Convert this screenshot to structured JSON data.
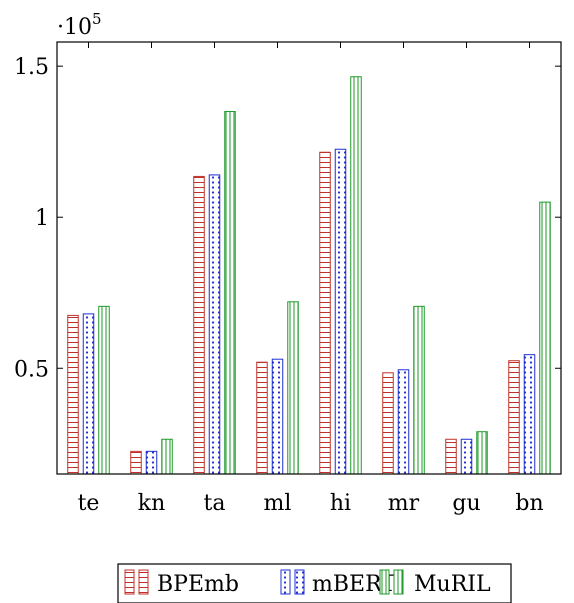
{
  "chart_data": {
    "type": "bar",
    "categories": [
      "te",
      "kn",
      "ta",
      "ml",
      "hi",
      "mr",
      "gu",
      "bn"
    ],
    "series": [
      {
        "name": "BPEmb",
        "values": [
          67500,
          22500,
          113500,
          52000,
          121500,
          48500,
          26500,
          52500
        ]
      },
      {
        "name": "mBERT",
        "values": [
          68000,
          22500,
          114000,
          53000,
          122500,
          49500,
          26500,
          54500
        ]
      },
      {
        "name": "MuRIL",
        "values": [
          70500,
          26500,
          135000,
          72000,
          146500,
          70500,
          29000,
          105000
        ]
      }
    ],
    "ylim": [
      15000,
      158000
    ],
    "yticks": [
      {
        "value": 50000,
        "label": "0.5"
      },
      {
        "value": 100000,
        "label": "1"
      },
      {
        "value": 150000,
        "label": "1.5"
      }
    ],
    "y_scale_label": {
      "base": "·10",
      "exponent": "5"
    },
    "legend_position": "bottom",
    "colors": {
      "BPEmb": "#c0302a",
      "mBERT": "#1f2fd0",
      "MuRIL": "#1f9a2a"
    }
  }
}
